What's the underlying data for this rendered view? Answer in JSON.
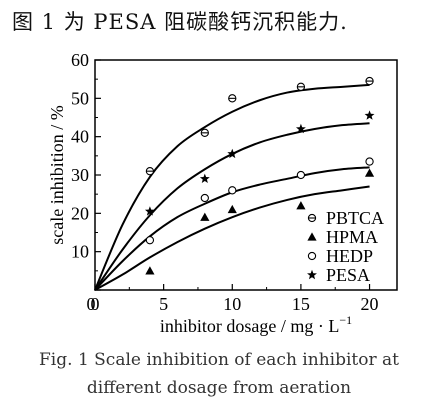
{
  "intro_text": "图 1 为 PESA 阻碳酸钙沉积能力.",
  "caption_line1": "Fig. 1    Scale inhibition of each inhibitor at",
  "caption_line2": "different dosage from aeration",
  "chart_data": {
    "type": "scatter",
    "xlabel": "inhibitor dosage / mg · L",
    "xlabel_sup": "−1",
    "ylabel": "scale inhibition / %",
    "xlim": [
      0,
      22
    ],
    "ylim": [
      0,
      60
    ],
    "xticks": [
      0,
      5,
      10,
      15,
      20
    ],
    "yticks": [
      0,
      10,
      20,
      30,
      40,
      50,
      60
    ],
    "grid": false,
    "legend_position": "lower-right",
    "series": [
      {
        "name": "PBTCA",
        "marker": "circle-half",
        "points": [
          [
            4,
            31
          ],
          [
            8,
            41
          ],
          [
            10,
            50
          ],
          [
            15,
            53
          ],
          [
            20,
            54.5
          ]
        ],
        "curve": [
          [
            0,
            0
          ],
          [
            2,
            17
          ],
          [
            4,
            29.5
          ],
          [
            6,
            37.5
          ],
          [
            8,
            42.5
          ],
          [
            10,
            46.5
          ],
          [
            12,
            49.5
          ],
          [
            14,
            51.5
          ],
          [
            16,
            52.5
          ],
          [
            18,
            53
          ],
          [
            20,
            53.5
          ]
        ]
      },
      {
        "name": "HPMA",
        "marker": "triangle",
        "points": [
          [
            4,
            5
          ],
          [
            8,
            19
          ],
          [
            10,
            21
          ],
          [
            15,
            22
          ],
          [
            20,
            30.5
          ]
        ],
        "curve": [
          [
            0,
            0
          ],
          [
            2,
            4
          ],
          [
            4,
            8.5
          ],
          [
            6,
            12.5
          ],
          [
            8,
            16
          ],
          [
            10,
            19
          ],
          [
            12,
            21.5
          ],
          [
            14,
            23.5
          ],
          [
            16,
            25
          ],
          [
            18,
            26
          ],
          [
            20,
            27
          ]
        ]
      },
      {
        "name": "HEDP",
        "marker": "circle-open",
        "points": [
          [
            4,
            13
          ],
          [
            8,
            24
          ],
          [
            10,
            26
          ],
          [
            15,
            30
          ],
          [
            20,
            33.5
          ]
        ],
        "curve": [
          [
            0,
            0
          ],
          [
            2,
            7.5
          ],
          [
            4,
            14
          ],
          [
            6,
            19
          ],
          [
            8,
            22.5
          ],
          [
            10,
            25.5
          ],
          [
            12,
            27.5
          ],
          [
            14,
            29
          ],
          [
            16,
            30.5
          ],
          [
            18,
            31.5
          ],
          [
            20,
            32
          ]
        ]
      },
      {
        "name": "PESA",
        "marker": "star",
        "points": [
          [
            4,
            20.5
          ],
          [
            8,
            29
          ],
          [
            10,
            35.5
          ],
          [
            15,
            42
          ],
          [
            20,
            45.5
          ]
        ],
        "curve": [
          [
            0,
            0
          ],
          [
            2,
            10.5
          ],
          [
            4,
            19.5
          ],
          [
            6,
            26.5
          ],
          [
            8,
            31.5
          ],
          [
            10,
            35.5
          ],
          [
            12,
            38.5
          ],
          [
            14,
            40.5
          ],
          [
            16,
            42
          ],
          [
            18,
            43
          ],
          [
            20,
            43.5
          ]
        ]
      }
    ]
  }
}
